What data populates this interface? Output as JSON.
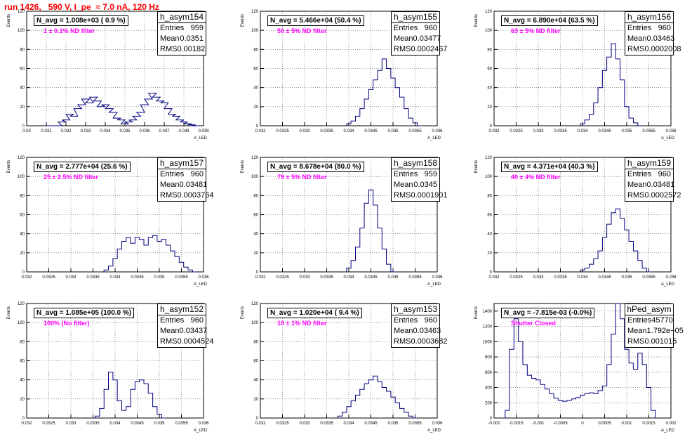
{
  "page": {
    "title": "run 1426,   590 V, I_pe  ≈ 7.0 nA, 120 Hz"
  },
  "chart_data": [
    {
      "type": "histogram",
      "name": "h_asym154",
      "n_avg_label": "N_avg = 1.008e+03 ( 0.9 %)",
      "filter_label": "1 ± 0.1% ND filter",
      "stats": {
        "title": "h_asym154",
        "rows": [
          [
            "Entries",
            "959"
          ],
          [
            "Mean",
            "0.0351"
          ],
          [
            "RMS",
            "0.00182"
          ]
        ]
      },
      "ylabel": "Events",
      "xlabel": "A_LED",
      "xlim": [
        0.03,
        0.039
      ],
      "ylim": [
        0,
        120
      ],
      "xticks": [
        "0.03",
        "0.031",
        "0.032",
        "0.033",
        "0.034",
        "0.035",
        "0.036",
        "0.037",
        "0.038",
        "0.039"
      ],
      "yticks": [
        "0",
        "20",
        "40",
        "60",
        "80",
        "100",
        "120"
      ],
      "x": [
        0.0312,
        0.0316,
        0.0318,
        0.032,
        0.0322,
        0.0324,
        0.0326,
        0.0328,
        0.033,
        0.0332,
        0.0334,
        0.0336,
        0.0338,
        0.034,
        0.0342,
        0.0344,
        0.0346,
        0.0348,
        0.035,
        0.0352,
        0.0354,
        0.0356,
        0.0358,
        0.036,
        0.0362,
        0.0364,
        0.0366,
        0.0368,
        0.037,
        0.0372,
        0.0374,
        0.0376,
        0.0378,
        0.038,
        0.0382,
        0.0384,
        0.0386
      ],
      "y": [
        0,
        0,
        4,
        6,
        12,
        10,
        18,
        22,
        28,
        24,
        30,
        26,
        20,
        22,
        18,
        14,
        8,
        6,
        2,
        4,
        6,
        10,
        14,
        22,
        28,
        34,
        30,
        26,
        24,
        18,
        12,
        10,
        6,
        4,
        2,
        1,
        0
      ]
    },
    {
      "type": "histogram",
      "name": "h_asym155",
      "n_avg_label": "N_avg = 5.466e+04 (50.4 %)",
      "filter_label": "50 ± 5% ND filter",
      "stats": {
        "title": "h_asym155",
        "rows": [
          [
            "Entries",
            "960"
          ],
          [
            "Mean",
            "0.03477"
          ],
          [
            "RMS",
            "0.0002467"
          ]
        ]
      },
      "ylabel": "Events",
      "xlabel": "A_LED",
      "xlim": [
        0.032,
        0.036
      ],
      "ylim": [
        0,
        120
      ],
      "xticks": [
        "0.032",
        "0.0325",
        "0.033",
        "0.0335",
        "0.034",
        "0.0345",
        "0.035",
        "0.0355",
        "0.036"
      ],
      "yticks": [
        "0",
        "20",
        "40",
        "60",
        "80",
        "100",
        "120"
      ],
      "x": [
        0.034,
        0.0341,
        0.0342,
        0.0343,
        0.0344,
        0.0345,
        0.0346,
        0.0347,
        0.0348,
        0.0349,
        0.035,
        0.0351,
        0.0352,
        0.0353,
        0.0354,
        0.0355,
        0.0356
      ],
      "y": [
        2,
        5,
        10,
        18,
        28,
        38,
        48,
        58,
        70,
        60,
        50,
        40,
        30,
        18,
        8,
        3,
        0
      ]
    },
    {
      "type": "histogram",
      "name": "h_asym156",
      "n_avg_label": "N_avg = 6.890e+04 (63.5 %)",
      "filter_label": "63 ± 5% ND filter",
      "stats": {
        "title": "h_asym156",
        "rows": [
          [
            "Entries",
            "960"
          ],
          [
            "Mean",
            "0.03463"
          ],
          [
            "RMS",
            "0.0002008"
          ]
        ]
      },
      "ylabel": "Events",
      "xlabel": "A_LED",
      "xlim": [
        0.032,
        0.036
      ],
      "ylim": [
        0,
        120
      ],
      "xticks": [
        "0.032",
        "0.0325",
        "0.033",
        "0.0335",
        "0.034",
        "0.0345",
        "0.035",
        "0.0355",
        "0.036"
      ],
      "yticks": [
        "0",
        "20",
        "40",
        "60",
        "80",
        "100",
        "120"
      ],
      "x": [
        0.034,
        0.0341,
        0.0342,
        0.0343,
        0.0344,
        0.0345,
        0.0346,
        0.0347,
        0.0348,
        0.0349,
        0.035,
        0.0351,
        0.0352,
        0.0353
      ],
      "y": [
        2,
        6,
        12,
        24,
        40,
        58,
        72,
        86,
        70,
        48,
        20,
        8,
        3,
        0
      ]
    },
    {
      "type": "histogram",
      "name": "h_asym157",
      "n_avg_label": "N_avg = 2.777e+04 (25.6 %)",
      "filter_label": "25 ± 2.5% ND filter",
      "stats": {
        "title": "h_asym157",
        "rows": [
          [
            "Entries",
            "960"
          ],
          [
            "Mean",
            "0.03481"
          ],
          [
            "RMS",
            "0.0003764"
          ]
        ]
      },
      "ylabel": "Events",
      "xlabel": "A_LED",
      "xlim": [
        0.032,
        0.036
      ],
      "ylim": [
        0,
        120
      ],
      "xticks": [
        "0.032",
        "0.0325",
        "0.033",
        "0.0335",
        "0.034",
        "0.0345",
        "0.035",
        "0.0355",
        "0.036"
      ],
      "yticks": [
        "0",
        "20",
        "40",
        "60",
        "80",
        "100",
        "120"
      ],
      "x": [
        0.0338,
        0.0339,
        0.034,
        0.0341,
        0.0342,
        0.0343,
        0.0344,
        0.0345,
        0.0346,
        0.0347,
        0.0348,
        0.0349,
        0.035,
        0.0351,
        0.0352,
        0.0353,
        0.0354,
        0.0355,
        0.0356,
        0.0357,
        0.0358
      ],
      "y": [
        2,
        6,
        14,
        24,
        32,
        36,
        30,
        36,
        34,
        28,
        36,
        38,
        32,
        34,
        28,
        22,
        16,
        10,
        5,
        2,
        0
      ]
    },
    {
      "type": "histogram",
      "name": "h_asym158",
      "n_avg_label": "N_avg = 8.678e+04 (80.0 %)",
      "filter_label": "79 ± 5% ND filter",
      "stats": {
        "title": "h_asym158",
        "rows": [
          [
            "Entries",
            "959"
          ],
          [
            "Mean",
            "0.0345"
          ],
          [
            "RMS",
            "0.0001901"
          ]
        ]
      },
      "ylabel": "Events",
      "xlabel": "A_LED",
      "xlim": [
        0.032,
        0.036
      ],
      "ylim": [
        0,
        120
      ],
      "xticks": [
        "0.032",
        "0.0325",
        "0.033",
        "0.0335",
        "0.034",
        "0.0345",
        "0.035",
        "0.0355",
        "0.036"
      ],
      "yticks": [
        "0",
        "20",
        "40",
        "60",
        "80",
        "100",
        "120"
      ],
      "x": [
        0.034,
        0.0341,
        0.0342,
        0.0343,
        0.0344,
        0.0345,
        0.0346,
        0.0347,
        0.0348,
        0.0349,
        0.035
      ],
      "y": [
        4,
        12,
        26,
        46,
        72,
        86,
        70,
        46,
        24,
        8,
        0
      ]
    },
    {
      "type": "histogram",
      "name": "h_asym159",
      "n_avg_label": "N_avg = 4.371e+04 (40.3 %)",
      "filter_label": "40 ± 4% ND filter",
      "stats": {
        "title": "h_asym159",
        "rows": [
          [
            "Entries",
            "960"
          ],
          [
            "Mean",
            "0.03481"
          ],
          [
            "RMS",
            "0.0002572"
          ]
        ]
      },
      "ylabel": "Events",
      "xlabel": "A_LED",
      "xlim": [
        0.032,
        0.036
      ],
      "ylim": [
        0,
        120
      ],
      "xticks": [
        "0.032",
        "0.0325",
        "0.033",
        "0.0335",
        "0.034",
        "0.0345",
        "0.035",
        "0.0355",
        "0.036"
      ],
      "yticks": [
        "0",
        "20",
        "40",
        "60",
        "80",
        "100",
        "120"
      ],
      "x": [
        0.034,
        0.0341,
        0.0342,
        0.0343,
        0.0344,
        0.0345,
        0.0346,
        0.0347,
        0.0348,
        0.0349,
        0.035,
        0.0351,
        0.0352,
        0.0353,
        0.0354,
        0.0355
      ],
      "y": [
        2,
        4,
        8,
        14,
        22,
        36,
        50,
        62,
        66,
        56,
        44,
        32,
        22,
        12,
        4,
        0
      ]
    },
    {
      "type": "histogram",
      "name": "h_asym152",
      "n_avg_label": "N_avg = 1.085e+05 (100.0 %)",
      "filter_label": "100% (No filter)",
      "stats": {
        "title": "h_asym152",
        "rows": [
          [
            "Entries",
            "960"
          ],
          [
            "Mean",
            "0.03437"
          ],
          [
            "RMS",
            "0.0004524"
          ]
        ]
      },
      "ylabel": "Events",
      "xlabel": "A_LED",
      "xlim": [
        0.032,
        0.036
      ],
      "ylim": [
        0,
        120
      ],
      "xticks": [
        "0.032",
        "0.0325",
        "0.033",
        "0.0335",
        "0.034",
        "0.0345",
        "0.035",
        "0.0355",
        "0.036"
      ],
      "yticks": [
        "0",
        "20",
        "40",
        "60",
        "80",
        "100",
        "120"
      ],
      "x": [
        0.0336,
        0.0337,
        0.0338,
        0.0339,
        0.034,
        0.0341,
        0.0342,
        0.0343,
        0.0344,
        0.0345,
        0.0346,
        0.0347,
        0.0348,
        0.0349,
        0.035,
        0.0351
      ],
      "y": [
        2,
        10,
        30,
        48,
        40,
        18,
        8,
        12,
        30,
        38,
        40,
        36,
        26,
        12,
        4,
        0
      ]
    },
    {
      "type": "histogram",
      "name": "h_asym153",
      "n_avg_label": "N_avg = 1.020e+04 ( 9.4 %)",
      "filter_label": "10 ± 1% ND filter",
      "stats": {
        "title": "h_asym153",
        "rows": [
          [
            "Entries",
            "960"
          ],
          [
            "Mean",
            "0.03463"
          ],
          [
            "RMS",
            "0.0003682"
          ]
        ]
      },
      "ylabel": "Events",
      "xlabel": "A_LED",
      "xlim": [
        0.032,
        0.036
      ],
      "ylim": [
        0,
        120
      ],
      "xticks": [
        "0.032",
        "0.0325",
        "0.033",
        "0.0335",
        "0.034",
        "0.0345",
        "0.035",
        "0.0355",
        "0.036"
      ],
      "yticks": [
        "0",
        "20",
        "40",
        "60",
        "80",
        "100",
        "120"
      ],
      "x": [
        0.0338,
        0.0339,
        0.034,
        0.0341,
        0.0342,
        0.0343,
        0.0344,
        0.0345,
        0.0346,
        0.0347,
        0.0348,
        0.0349,
        0.035,
        0.0351,
        0.0352,
        0.0353,
        0.0354,
        0.0355
      ],
      "y": [
        2,
        6,
        12,
        18,
        24,
        30,
        36,
        40,
        44,
        38,
        32,
        28,
        22,
        16,
        10,
        6,
        2,
        0
      ]
    },
    {
      "type": "histogram",
      "name": "hPed_asym",
      "n_avg_label": "N_avg = -7.815e-03 (-0.0%)",
      "filter_label": "Shutter Closed",
      "stats": {
        "title": "hPed_asym",
        "rows": [
          [
            "Entries",
            "45770"
          ],
          [
            "Mean",
            "1.792e−05"
          ],
          [
            "RMS",
            "0.001015"
          ]
        ]
      },
      "ylabel": "Events",
      "xlabel": "A_LED",
      "xlim": [
        -0.002,
        0.002
      ],
      "ylim": [
        0,
        1500
      ],
      "xticks": [
        "-0.002",
        "-0.0015",
        "-0.001",
        "-0.0005",
        "0",
        "0.0005",
        "0.001",
        "0.0015",
        "0.002"
      ],
      "yticks": [
        "0",
        "200",
        "400",
        "600",
        "800",
        "1000",
        "1200",
        "1400"
      ],
      "x": [
        -0.0017,
        -0.0016,
        -0.0015,
        -0.0014,
        -0.0013,
        -0.0012,
        -0.0011,
        -0.001,
        -0.0009,
        -0.0008,
        -0.0007,
        -0.0006,
        -0.0005,
        -0.0004,
        -0.0003,
        -0.0002,
        -0.0001,
        0.0,
        0.0001,
        0.0002,
        0.0003,
        0.0004,
        0.0005,
        0.0006,
        0.0007,
        0.0008,
        0.0009,
        0.001,
        0.0011,
        0.0012,
        0.0013,
        0.0014,
        0.0015,
        0.0016
      ],
      "y": [
        100,
        900,
        1300,
        1000,
        700,
        560,
        520,
        500,
        440,
        380,
        320,
        260,
        230,
        220,
        230,
        250,
        270,
        300,
        320,
        330,
        320,
        360,
        420,
        700,
        1100,
        1500,
        1300,
        900,
        720,
        640,
        850,
        700,
        400,
        100
      ]
    }
  ]
}
